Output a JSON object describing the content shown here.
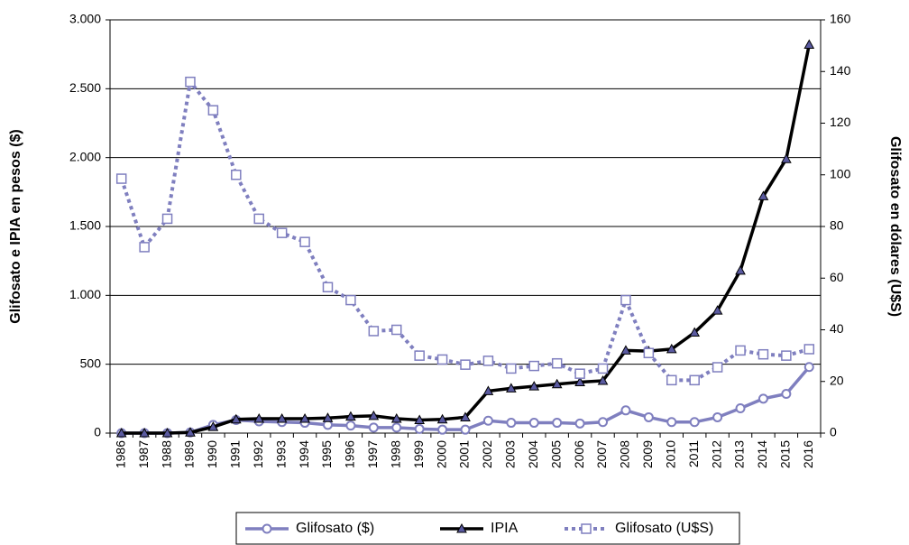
{
  "chart_data": {
    "type": "line",
    "y_label": "Glifosato e IPIA en pesos ($)",
    "y2_label": "Glifosato en dólares (U$S)",
    "categories": [
      "1986",
      "1987",
      "1988",
      "1989",
      "1990",
      "1991",
      "1992",
      "1993",
      "1994",
      "1995",
      "1996",
      "1997",
      "1998",
      "1999",
      "2000",
      "2001",
      "2002",
      "2003",
      "2004",
      "2005",
      "2006",
      "2007",
      "2008",
      "2009",
      "2010",
      "2011",
      "2012",
      "2013",
      "2014",
      "2015",
      "2016"
    ],
    "ylim": [
      0,
      3000
    ],
    "yticks": [
      0,
      500,
      {
        "value": 1000,
        "label": "1.000"
      },
      {
        "value": 1500,
        "label": "1.500"
      },
      {
        "value": 2000,
        "label": "2.000"
      },
      {
        "value": 2500,
        "label": "2.500"
      },
      {
        "value": 3000,
        "label": "3.000"
      }
    ],
    "y2lim": [
      0,
      160
    ],
    "y2ticks": [
      0,
      20,
      40,
      60,
      80,
      100,
      120,
      140,
      160
    ],
    "grid": true,
    "legend": "bottom",
    "series": [
      {
        "name": "Glifosato ($)",
        "color": "#7f7fbf",
        "marker": "circle",
        "marker_color": "#7f7fbf",
        "line_style": "solid",
        "axis": "y",
        "values": [
          0,
          0,
          0,
          5,
          60,
          95,
          85,
          80,
          75,
          60,
          55,
          40,
          40,
          30,
          25,
          25,
          90,
          75,
          75,
          75,
          70,
          80,
          165,
          115,
          80,
          80,
          115,
          180,
          250,
          285,
          480
        ]
      },
      {
        "name": "IPIA",
        "color": "#000000",
        "marker": "triangle",
        "marker_color": "#5a5aa0",
        "line_style": "solid",
        "axis": "y",
        "values": [
          0,
          0,
          0,
          5,
          45,
          100,
          105,
          105,
          105,
          110,
          120,
          125,
          105,
          95,
          100,
          115,
          305,
          325,
          340,
          355,
          370,
          380,
          600,
          595,
          610,
          730,
          890,
          1180,
          1720,
          1990,
          2820
        ]
      },
      {
        "name": "Glifosato (U$S)",
        "color": "#7f7fbf",
        "marker": "square",
        "marker_color": "#7f7fbf",
        "line_style": "dotted",
        "axis": "y2",
        "values": [
          98.5,
          72,
          83,
          136,
          125,
          100,
          83,
          77.5,
          74,
          56.5,
          51.5,
          39.5,
          40,
          30,
          28.5,
          26.5,
          28,
          25,
          26,
          27,
          23,
          25,
          51.5,
          31,
          20.5,
          20.5,
          25.5,
          32,
          30.5,
          30,
          32.5
        ]
      }
    ]
  }
}
